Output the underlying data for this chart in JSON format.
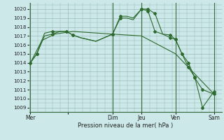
{
  "title": "",
  "xlabel": "Pression niveau de la mer( hPa )",
  "bg_color": "#cce8e8",
  "grid_color": "#99bbbb",
  "line_color": "#2d6a2d",
  "marker_color": "#2d6a2d",
  "ylim": [
    1008.5,
    1020.7
  ],
  "yticks": [
    1009,
    1010,
    1011,
    1012,
    1013,
    1014,
    1015,
    1016,
    1017,
    1018,
    1019,
    1020
  ],
  "xlim": [
    0,
    300
  ],
  "x_day_positions": [
    2,
    60,
    130,
    175,
    228,
    288
  ],
  "x_day_labels": [
    "Mer",
    "",
    "Dim",
    "Jeu",
    "Ven",
    "Sam"
  ],
  "x_vert_lines": [
    2,
    130,
    175,
    228,
    288
  ],
  "series": [
    {
      "x": [
        2,
        12,
        24,
        36,
        48,
        58,
        68,
        80,
        92,
        104,
        130,
        142,
        152,
        162,
        175,
        185,
        196,
        208,
        220,
        228,
        238,
        248,
        258,
        270,
        288
      ],
      "y": [
        1014.0,
        1015.0,
        1017.0,
        1017.2,
        1017.5,
        1017.5,
        1017.1,
        1016.8,
        1016.6,
        1016.4,
        1017.2,
        1019.0,
        1019.0,
        1018.8,
        1020.0,
        1020.0,
        1019.5,
        1017.2,
        1017.1,
        1016.6,
        1015.0,
        1013.5,
        1012.4,
        1009.0,
        1010.8
      ]
    },
    {
      "x": [
        2,
        12,
        24,
        36,
        48,
        58,
        68,
        80,
        92,
        104,
        130,
        142,
        152,
        162,
        175,
        185,
        196,
        208,
        220,
        228,
        238,
        248,
        258,
        270,
        288
      ],
      "y": [
        1014.0,
        1015.0,
        1017.3,
        1017.5,
        1017.5,
        1017.5,
        1017.1,
        1016.8,
        1016.6,
        1016.4,
        1017.2,
        1019.2,
        1019.2,
        1019.0,
        1020.0,
        1019.8,
        1017.5,
        1017.2,
        1016.8,
        1016.6,
        1015.0,
        1014.0,
        1012.3,
        1011.0,
        1010.5
      ]
    },
    {
      "x": [
        2,
        20,
        40,
        68,
        130,
        175,
        228,
        288
      ],
      "y": [
        1014.0,
        1016.5,
        1017.2,
        1017.5,
        1017.2,
        1017.0,
        1015.0,
        1010.5
      ]
    }
  ],
  "marker_x": [
    2,
    12,
    36,
    58,
    68,
    130,
    142,
    175,
    185,
    196,
    220,
    228,
    238,
    248,
    258,
    270,
    288
  ],
  "marker_y1": [
    1014.0,
    1015.0,
    1017.2,
    1017.5,
    1017.1,
    1017.2,
    1019.0,
    1020.0,
    1020.0,
    1019.5,
    1017.1,
    1016.6,
    1015.0,
    1013.5,
    1012.4,
    1009.0,
    1010.8
  ],
  "marker_y2": [
    1014.0,
    1015.0,
    1017.5,
    1017.5,
    1017.1,
    1017.2,
    1019.2,
    1020.0,
    1019.8,
    1017.5,
    1016.8,
    1016.6,
    1015.0,
    1014.0,
    1012.3,
    1011.0,
    1010.5
  ]
}
